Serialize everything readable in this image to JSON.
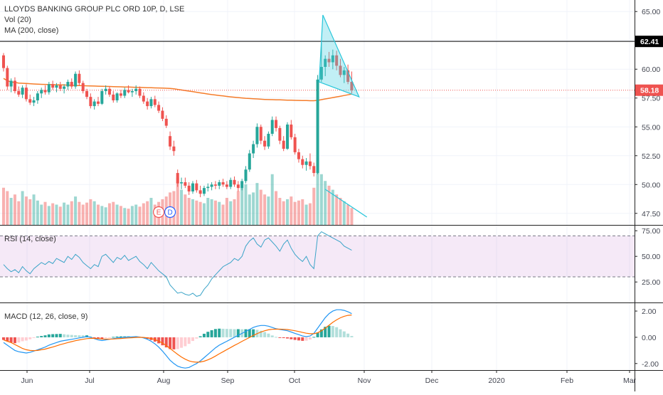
{
  "chart_data": {
    "type": "candlestick",
    "title": "LLOYDS BANKING GROUP PLC ORD 10P, D, LSE",
    "volume_label": "Vol (20)",
    "ma_label": "MA (200, close)",
    "x_ticks": [
      "Jun",
      "Jul",
      "Aug",
      "Sep",
      "Oct",
      "Nov",
      "Dec",
      "2020",
      "Feb",
      "Mar"
    ],
    "price_axis": {
      "ticks": [
        "65.00",
        "62.50",
        "60.00",
        "57.50",
        "55.00",
        "52.50",
        "50.00",
        "47.50"
      ],
      "range": [
        46.5,
        66.0
      ]
    },
    "horizontal_line": {
      "value": 62.41,
      "label": "62.41"
    },
    "last_price": {
      "value": 58.18,
      "label": "58.18"
    },
    "event_badges": [
      "E",
      "D"
    ],
    "candles_ohlc": [
      [
        61.2,
        61.4,
        59.8,
        60.1
      ],
      [
        60.1,
        60.3,
        58.2,
        58.5
      ],
      [
        58.5,
        59.2,
        58.0,
        59.0
      ],
      [
        59.0,
        59.3,
        57.9,
        58.1
      ],
      [
        58.1,
        58.5,
        57.6,
        57.8
      ],
      [
        57.8,
        58.6,
        57.5,
        58.4
      ],
      [
        58.4,
        58.7,
        57.2,
        57.4
      ],
      [
        57.4,
        57.8,
        56.9,
        57.1
      ],
      [
        57.1,
        57.6,
        56.8,
        57.3
      ],
      [
        57.3,
        58.1,
        57.0,
        57.9
      ],
      [
        57.9,
        58.4,
        57.5,
        58.2
      ],
      [
        58.2,
        58.6,
        57.8,
        58.0
      ],
      [
        58.0,
        58.9,
        57.8,
        58.7
      ],
      [
        58.7,
        59.0,
        58.2,
        58.4
      ],
      [
        58.4,
        58.8,
        58.0,
        58.6
      ],
      [
        58.6,
        58.9,
        58.1,
        58.3
      ],
      [
        58.3,
        58.7,
        57.9,
        58.5
      ],
      [
        58.5,
        59.1,
        58.2,
        58.9
      ],
      [
        58.9,
        59.2,
        58.3,
        58.5
      ],
      [
        58.5,
        59.8,
        58.3,
        59.6
      ],
      [
        59.6,
        59.9,
        58.6,
        58.8
      ],
      [
        58.8,
        59.0,
        57.9,
        58.1
      ],
      [
        58.1,
        58.3,
        57.4,
        57.6
      ],
      [
        57.6,
        57.9,
        56.6,
        56.8
      ],
      [
        56.8,
        57.4,
        56.5,
        57.2
      ],
      [
        57.2,
        57.6,
        56.8,
        57.0
      ],
      [
        57.0,
        58.3,
        56.9,
        58.1
      ],
      [
        58.1,
        58.6,
        57.8,
        58.3
      ],
      [
        58.3,
        58.5,
        57.6,
        57.8
      ],
      [
        57.8,
        58.1,
        57.1,
        57.3
      ],
      [
        57.3,
        58.0,
        57.1,
        57.9
      ],
      [
        57.9,
        58.2,
        57.5,
        57.7
      ],
      [
        57.7,
        58.4,
        57.5,
        58.2
      ],
      [
        58.2,
        58.6,
        57.9,
        58.0
      ],
      [
        58.0,
        58.3,
        57.6,
        58.1
      ],
      [
        58.1,
        58.6,
        57.8,
        58.3
      ],
      [
        58.3,
        58.5,
        57.5,
        57.7
      ],
      [
        57.7,
        58.0,
        57.0,
        57.2
      ],
      [
        57.2,
        57.5,
        56.5,
        56.8
      ],
      [
        56.8,
        57.6,
        56.6,
        57.4
      ],
      [
        57.4,
        57.7,
        56.7,
        56.9
      ],
      [
        56.9,
        57.2,
        56.2,
        56.4
      ],
      [
        56.4,
        56.7,
        55.5,
        55.7
      ],
      [
        55.7,
        56.0,
        54.9,
        55.1
      ],
      [
        54.2,
        54.6,
        53.0,
        53.3
      ],
      [
        53.3,
        53.8,
        52.5,
        52.9
      ],
      [
        51.0,
        51.3,
        49.8,
        50.1
      ],
      [
        50.1,
        50.6,
        49.6,
        50.2
      ],
      [
        50.2,
        50.6,
        49.7,
        49.9
      ],
      [
        49.9,
        50.2,
        49.1,
        49.4
      ],
      [
        49.4,
        50.3,
        49.2,
        50.1
      ],
      [
        50.1,
        50.4,
        49.3,
        49.5
      ],
      [
        49.5,
        49.9,
        48.9,
        49.2
      ],
      [
        49.2,
        49.9,
        49.0,
        49.7
      ],
      [
        49.7,
        50.1,
        49.4,
        49.8
      ],
      [
        49.8,
        50.2,
        49.5,
        50.0
      ],
      [
        50.0,
        50.3,
        49.6,
        49.9
      ],
      [
        49.9,
        50.4,
        49.6,
        50.2
      ],
      [
        50.2,
        50.5,
        49.8,
        50.0
      ],
      [
        50.0,
        50.3,
        49.6,
        49.8
      ],
      [
        49.8,
        50.6,
        49.6,
        50.4
      ],
      [
        50.4,
        50.7,
        49.8,
        50.0
      ],
      [
        50.0,
        50.3,
        49.4,
        49.7
      ],
      [
        49.7,
        50.5,
        49.5,
        50.3
      ],
      [
        50.3,
        51.6,
        50.1,
        51.3
      ],
      [
        51.3,
        53.0,
        51.1,
        52.7
      ],
      [
        52.7,
        53.8,
        52.3,
        53.5
      ],
      [
        53.5,
        55.3,
        53.2,
        55.0
      ],
      [
        55.0,
        55.2,
        53.5,
        53.8
      ],
      [
        53.8,
        54.2,
        53.0,
        53.3
      ],
      [
        53.3,
        54.6,
        53.1,
        54.4
      ],
      [
        54.4,
        55.9,
        54.2,
        55.6
      ],
      [
        55.6,
        55.9,
        54.6,
        54.9
      ],
      [
        54.9,
        55.1,
        53.5,
        53.8
      ],
      [
        53.8,
        54.2,
        52.9,
        53.1
      ],
      [
        53.1,
        55.4,
        53.0,
        55.2
      ],
      [
        55.2,
        55.6,
        53.9,
        54.1
      ],
      [
        54.1,
        54.4,
        52.6,
        52.8
      ],
      [
        52.8,
        53.1,
        51.9,
        52.2
      ],
      [
        52.2,
        52.5,
        51.4,
        51.7
      ],
      [
        51.7,
        52.3,
        51.2,
        52.0
      ],
      [
        52.0,
        52.7,
        51.3,
        51.6
      ],
      [
        51.6,
        51.9,
        50.7,
        51.0
      ],
      [
        51.0,
        59.5,
        50.9,
        59.1
      ],
      [
        59.1,
        62.3,
        58.9,
        60.2
      ],
      [
        60.2,
        61.2,
        59.4,
        60.9
      ],
      [
        60.9,
        61.5,
        60.2,
        60.6
      ],
      [
        60.6,
        61.7,
        60.0,
        61.2
      ],
      [
        61.2,
        61.6,
        59.9,
        60.3
      ],
      [
        60.3,
        60.9,
        59.3,
        59.5
      ],
      [
        59.5,
        60.2,
        58.8,
        59.9
      ],
      [
        59.9,
        60.4,
        58.7,
        58.9
      ],
      [
        58.9,
        59.8,
        57.9,
        58.18
      ]
    ],
    "ma200": [
      59.2,
      59.0,
      58.9,
      58.85,
      58.8,
      58.78,
      58.76,
      58.74,
      58.72,
      58.7,
      58.69,
      58.68,
      58.67,
      58.66,
      58.65,
      58.64,
      58.63,
      58.62,
      58.6,
      58.59,
      58.58,
      58.57,
      58.56,
      58.55,
      58.54,
      58.53,
      58.52,
      58.51,
      58.5,
      58.49,
      58.48,
      58.47,
      58.46,
      58.45,
      58.44,
      58.43,
      58.42,
      58.41,
      58.4,
      58.39,
      58.38,
      58.37,
      58.36,
      58.35,
      58.33,
      58.3,
      58.25,
      58.2,
      58.15,
      58.1,
      58.05,
      58.0,
      57.95,
      57.9,
      57.85,
      57.8,
      57.76,
      57.72,
      57.68,
      57.64,
      57.6,
      57.57,
      57.54,
      57.51,
      57.48,
      57.46,
      57.44,
      57.42,
      57.4,
      57.38,
      57.37,
      57.36,
      57.35,
      57.34,
      57.33,
      57.32,
      57.31,
      57.3,
      57.29,
      57.28,
      57.28,
      57.27,
      57.27,
      57.3,
      57.36,
      57.42,
      57.48,
      57.54,
      57.6,
      57.66,
      57.72,
      57.78,
      57.84
    ],
    "volume": [
      0.55,
      0.5,
      0.4,
      0.45,
      0.35,
      0.5,
      0.42,
      0.38,
      0.45,
      0.36,
      0.3,
      0.34,
      0.28,
      0.32,
      0.3,
      0.27,
      0.33,
      0.3,
      0.35,
      0.42,
      0.34,
      0.3,
      0.33,
      0.38,
      0.35,
      0.3,
      0.28,
      0.26,
      0.32,
      0.34,
      0.3,
      0.28,
      0.25,
      0.24,
      0.28,
      0.3,
      0.27,
      0.32,
      0.35,
      0.4,
      0.3,
      0.34,
      0.38,
      0.42,
      0.48,
      0.5,
      0.7,
      0.52,
      0.45,
      0.4,
      0.38,
      0.36,
      0.34,
      0.32,
      0.4,
      0.38,
      0.36,
      0.34,
      0.3,
      0.4,
      0.35,
      0.38,
      0.5,
      0.55,
      0.6,
      0.45,
      0.48,
      0.62,
      0.52,
      0.45,
      0.42,
      0.75,
      0.5,
      0.4,
      0.35,
      0.38,
      0.42,
      0.34,
      0.36,
      0.38,
      0.3,
      0.32,
      0.55,
      1.0,
      0.75,
      0.65,
      0.58,
      0.52,
      0.45,
      0.4,
      0.35,
      0.3,
      0.25
    ],
    "rsi": {
      "label": "RSI (14, close)",
      "ticks": [
        "75.00",
        "50.00",
        "25.00"
      ],
      "range": [
        5,
        80
      ],
      "band": [
        30,
        70
      ],
      "values": [
        42,
        38,
        35,
        37,
        34,
        40,
        36,
        33,
        38,
        41,
        44,
        42,
        45,
        43,
        48,
        46,
        44,
        50,
        47,
        52,
        49,
        44,
        41,
        38,
        42,
        40,
        50,
        52,
        48,
        44,
        49,
        47,
        51,
        46,
        48,
        50,
        45,
        42,
        38,
        44,
        40,
        36,
        33,
        30,
        22,
        18,
        14,
        15,
        13,
        12,
        14,
        11,
        12,
        18,
        22,
        28,
        32,
        36,
        40,
        42,
        44,
        48,
        46,
        50,
        60,
        65,
        68,
        62,
        59,
        66,
        68,
        64,
        60,
        55,
        62,
        66,
        58,
        52,
        48,
        45,
        50,
        42,
        38,
        70,
        74,
        72,
        70,
        68,
        66,
        64,
        60,
        58,
        56
      ]
    },
    "macd": {
      "label": "MACD (12, 26, close, 9)",
      "ticks": [
        "2.00",
        "0.00",
        "-2.00"
      ],
      "range": [
        -2.5,
        2.6
      ],
      "macd_line": [
        -0.4,
        -0.6,
        -0.8,
        -1.0,
        -1.1,
        -1.15,
        -1.2,
        -1.15,
        -1.05,
        -0.95,
        -0.85,
        -0.75,
        -0.6,
        -0.5,
        -0.4,
        -0.3,
        -0.25,
        -0.2,
        -0.15,
        -0.1,
        -0.05,
        0.0,
        0.05,
        0.0,
        -0.1,
        -0.2,
        -0.25,
        -0.2,
        -0.15,
        -0.1,
        -0.05,
        -0.02,
        0.0,
        0.02,
        0.03,
        0.05,
        0.02,
        -0.05,
        -0.15,
        -0.3,
        -0.5,
        -0.75,
        -1.05,
        -1.4,
        -1.75,
        -2.0,
        -2.2,
        -2.3,
        -2.35,
        -2.3,
        -2.15,
        -2.0,
        -1.8,
        -1.55,
        -1.3,
        -1.05,
        -0.8,
        -0.6,
        -0.45,
        -0.3,
        -0.15,
        0.0,
        0.15,
        0.3,
        0.45,
        0.6,
        0.75,
        0.85,
        0.9,
        0.9,
        0.85,
        0.75,
        0.65,
        0.6,
        0.55,
        0.5,
        0.4,
        0.3,
        0.2,
        0.1,
        0.05,
        0.1,
        0.3,
        0.7,
        1.1,
        1.5,
        1.8,
        2.0,
        2.1,
        2.1,
        2.05,
        1.95,
        1.8
      ],
      "signal_line": [
        -0.2,
        -0.3,
        -0.4,
        -0.55,
        -0.7,
        -0.85,
        -0.95,
        -1.0,
        -1.02,
        -1.0,
        -0.95,
        -0.9,
        -0.82,
        -0.74,
        -0.65,
        -0.56,
        -0.48,
        -0.4,
        -0.33,
        -0.26,
        -0.2,
        -0.15,
        -0.1,
        -0.08,
        -0.08,
        -0.1,
        -0.13,
        -0.14,
        -0.14,
        -0.13,
        -0.11,
        -0.09,
        -0.07,
        -0.05,
        -0.03,
        -0.01,
        0.0,
        -0.01,
        -0.04,
        -0.09,
        -0.17,
        -0.29,
        -0.44,
        -0.63,
        -0.85,
        -1.08,
        -1.3,
        -1.5,
        -1.67,
        -1.8,
        -1.87,
        -1.9,
        -1.88,
        -1.82,
        -1.72,
        -1.59,
        -1.43,
        -1.26,
        -1.1,
        -0.94,
        -0.78,
        -0.62,
        -0.47,
        -0.31,
        -0.16,
        -0.01,
        0.14,
        0.28,
        0.4,
        0.5,
        0.57,
        0.61,
        0.62,
        0.62,
        0.61,
        0.59,
        0.55,
        0.5,
        0.44,
        0.37,
        0.31,
        0.27,
        0.27,
        0.35,
        0.5,
        0.7,
        0.92,
        1.14,
        1.33,
        1.49,
        1.6,
        1.67,
        1.7
      ]
    }
  }
}
